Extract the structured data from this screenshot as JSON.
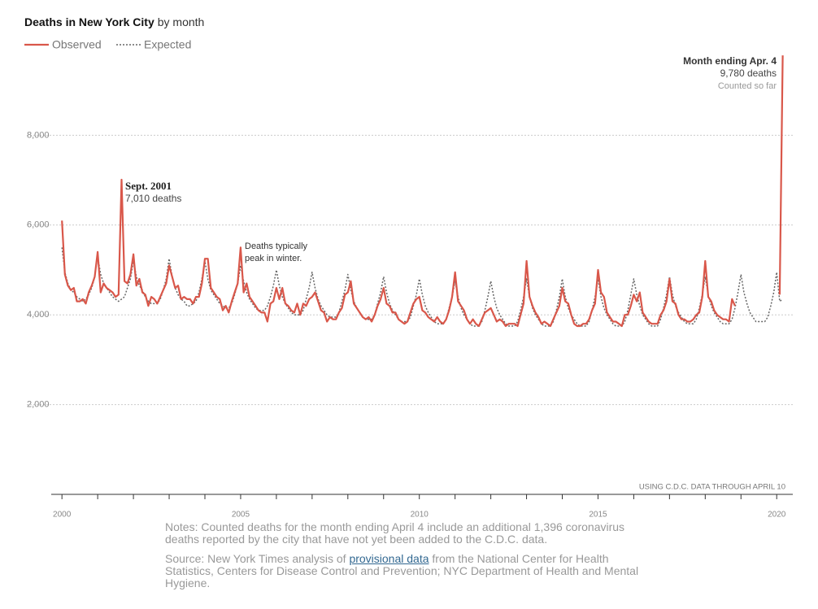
{
  "chart_data": {
    "type": "line",
    "title": "Deaths in New York City",
    "subtitle": "by month",
    "annotations": {
      "sept_title": "Sept. 2001",
      "sept_value": "7,010 deaths",
      "winter_1": "Deaths typically",
      "winter_2": "peak in winter.",
      "apr_title": "Month ending Apr. 4",
      "apr_value": "9,780 deaths",
      "apr_note": "Counted so far",
      "data_note": "USING C.D.C. DATA THROUGH APRIL 10"
    },
    "notes": "Notes: Counted deaths for the month ending April 4 include an additional 1,396 coronavirus deaths reported by the city that have not yet been added to the C.D.C. data.",
    "source": {
      "before": "Source: New York Times analysis of ",
      "link": "provisional data",
      "after": " from the National Center for Health Statistics, Centers for Disease Control and Prevention; NYC Department of Health and Mental Hygiene."
    },
    "xlim": [
      1999.7,
      2020.45
    ],
    "ylim": [
      0,
      10000
    ],
    "xticks": [
      2000,
      2005,
      2010,
      2015,
      2020
    ],
    "xminor_ticks": [
      2000,
      2001,
      2002,
      2003,
      2004,
      2005,
      2006,
      2007,
      2008,
      2009,
      2010,
      2011,
      2012,
      2013,
      2014,
      2015,
      2016,
      2017,
      2018,
      2019,
      2020
    ],
    "yticks": [
      {
        "value": 2000,
        "label": "2,000"
      },
      {
        "value": 4000,
        "label": "4,000"
      },
      {
        "value": 6000,
        "label": "6,000"
      },
      {
        "value": 8000,
        "label": "8,000"
      }
    ],
    "grid": true,
    "x": [
      2000,
      2000.083,
      2000.167,
      2000.25,
      2000.333,
      2000.417,
      2000.5,
      2000.583,
      2000.667,
      2000.75,
      2000.833,
      2000.917,
      2001,
      2001.083,
      2001.167,
      2001.25,
      2001.333,
      2001.417,
      2001.5,
      2001.583,
      2001.667,
      2001.75,
      2001.833,
      2001.917,
      2002,
      2002.083,
      2002.167,
      2002.25,
      2002.333,
      2002.417,
      2002.5,
      2002.583,
      2002.667,
      2002.75,
      2002.833,
      2002.917,
      2003,
      2003.083,
      2003.167,
      2003.25,
      2003.333,
      2003.417,
      2003.5,
      2003.583,
      2003.667,
      2003.75,
      2003.833,
      2003.917,
      2004,
      2004.083,
      2004.167,
      2004.25,
      2004.333,
      2004.417,
      2004.5,
      2004.583,
      2004.667,
      2004.75,
      2004.833,
      2004.917,
      2005,
      2005.083,
      2005.167,
      2005.25,
      2005.333,
      2005.417,
      2005.5,
      2005.583,
      2005.667,
      2005.75,
      2005.833,
      2005.917,
      2006,
      2006.083,
      2006.167,
      2006.25,
      2006.333,
      2006.417,
      2006.5,
      2006.583,
      2006.667,
      2006.75,
      2006.833,
      2006.917,
      2007,
      2007.083,
      2007.167,
      2007.25,
      2007.333,
      2007.417,
      2007.5,
      2007.583,
      2007.667,
      2007.75,
      2007.833,
      2007.917,
      2008,
      2008.083,
      2008.167,
      2008.25,
      2008.333,
      2008.417,
      2008.5,
      2008.583,
      2008.667,
      2008.75,
      2008.833,
      2008.917,
      2009,
      2009.083,
      2009.167,
      2009.25,
      2009.333,
      2009.417,
      2009.5,
      2009.583,
      2009.667,
      2009.75,
      2009.833,
      2009.917,
      2010,
      2010.083,
      2010.167,
      2010.25,
      2010.333,
      2010.417,
      2010.5,
      2010.583,
      2010.667,
      2010.75,
      2010.833,
      2010.917,
      2011,
      2011.083,
      2011.167,
      2011.25,
      2011.333,
      2011.417,
      2011.5,
      2011.583,
      2011.667,
      2011.75,
      2011.833,
      2011.917,
      2012,
      2012.083,
      2012.167,
      2012.25,
      2012.333,
      2012.417,
      2012.5,
      2012.583,
      2012.667,
      2012.75,
      2012.833,
      2012.917,
      2013,
      2013.083,
      2013.167,
      2013.25,
      2013.333,
      2013.417,
      2013.5,
      2013.583,
      2013.667,
      2013.75,
      2013.833,
      2013.917,
      2014,
      2014.083,
      2014.167,
      2014.25,
      2014.333,
      2014.417,
      2014.5,
      2014.583,
      2014.667,
      2014.75,
      2014.833,
      2014.917,
      2015,
      2015.083,
      2015.167,
      2015.25,
      2015.333,
      2015.417,
      2015.5,
      2015.583,
      2015.667,
      2015.75,
      2015.833,
      2015.917,
      2016,
      2016.083,
      2016.167,
      2016.25,
      2016.333,
      2016.417,
      2016.5,
      2016.583,
      2016.667,
      2016.75,
      2016.833,
      2016.917,
      2017,
      2017.083,
      2017.167,
      2017.25,
      2017.333,
      2017.417,
      2017.5,
      2017.583,
      2017.667,
      2017.75,
      2017.833,
      2017.917,
      2018,
      2018.083,
      2018.167,
      2018.25,
      2018.333,
      2018.417,
      2018.5,
      2018.583,
      2018.667,
      2018.75,
      2018.833,
      2018.917,
      2019,
      2019.083,
      2019.167,
      2019.25,
      2019.333,
      2019.417,
      2019.5,
      2019.583,
      2019.667,
      2019.75,
      2019.833,
      2019.917,
      2020,
      2020.083,
      2020.167
    ],
    "series": [
      {
        "name": "Observed",
        "color": "#d9574a",
        "dash": false,
        "values": [
          6100,
          4900,
          4650,
          4550,
          4600,
          4300,
          4300,
          4350,
          4250,
          4500,
          4650,
          4850,
          5400,
          4500,
          4700,
          4600,
          4550,
          4500,
          4400,
          4450,
          7010,
          4750,
          4700,
          4900,
          5350,
          4650,
          4800,
          4500,
          4450,
          4200,
          4400,
          4350,
          4250,
          4400,
          4550,
          4700,
          5100,
          4850,
          4600,
          4650,
          4350,
          4400,
          4350,
          4350,
          4250,
          4400,
          4400,
          4700,
          5250,
          5250,
          4600,
          4500,
          4400,
          4350,
          4100,
          4200,
          4050,
          4300,
          4500,
          4700,
          5500,
          4500,
          4700,
          4400,
          4300,
          4200,
          4100,
          4050,
          4050,
          3850,
          4250,
          4300,
          4600,
          4350,
          4600,
          4250,
          4200,
          4100,
          4050,
          4250,
          4000,
          4250,
          4200,
          4350,
          4400,
          4500,
          4300,
          4100,
          4050,
          3850,
          3950,
          3900,
          3900,
          4050,
          4150,
          4450,
          4500,
          4750,
          4250,
          4150,
          4050,
          3950,
          3900,
          3950,
          3850,
          4000,
          4200,
          4350,
          4600,
          4250,
          4200,
          4050,
          4050,
          3900,
          3850,
          3800,
          3850,
          4050,
          4250,
          4350,
          4400,
          4100,
          4050,
          3950,
          3900,
          3850,
          3950,
          3850,
          3800,
          3900,
          4100,
          4400,
          4950,
          4300,
          4200,
          4100,
          3900,
          3800,
          3900,
          3800,
          3750,
          3900,
          4050,
          4100,
          4150,
          4000,
          3850,
          3900,
          3850,
          3750,
          3800,
          3800,
          3800,
          3750,
          4000,
          4250,
          5200,
          4400,
          4200,
          4050,
          3950,
          3800,
          3850,
          3800,
          3750,
          3900,
          4050,
          4200,
          4600,
          4300,
          4250,
          4000,
          3800,
          3750,
          3750,
          3800,
          3800,
          3900,
          4100,
          4250,
          5000,
          4500,
          4400,
          4050,
          3950,
          3850,
          3850,
          3800,
          3750,
          4000,
          4000,
          4200,
          4450,
          4300,
          4500,
          4050,
          3950,
          3850,
          3800,
          3800,
          3800,
          4000,
          4100,
          4300,
          4800,
          4300,
          4250,
          4000,
          3900,
          3900,
          3850,
          3850,
          3900,
          4000,
          4050,
          4400,
          5200,
          4400,
          4300,
          4100,
          4000,
          3950,
          3900,
          3900,
          3850,
          4350,
          4200,
          null,
          null,
          null,
          null,
          null,
          null,
          null,
          null,
          null,
          null,
          null,
          null,
          null,
          null,
          4450,
          9780
        ]
      },
      {
        "name": "Expected",
        "color": "#666666",
        "dash": true,
        "values": [
          5500,
          4950,
          4700,
          4550,
          4500,
          4400,
          4350,
          4300,
          4350,
          4450,
          4600,
          4850,
          5300,
          4900,
          4700,
          4600,
          4500,
          4400,
          4350,
          4300,
          4350,
          4400,
          4600,
          4800,
          5200,
          4850,
          4650,
          4550,
          4400,
          4300,
          4250,
          4250,
          4250,
          4350,
          4550,
          4800,
          5250,
          4850,
          4600,
          4450,
          4350,
          4300,
          4200,
          4200,
          4250,
          4300,
          4500,
          4800,
          5200,
          4800,
          4550,
          4450,
          4350,
          4250,
          4200,
          4150,
          4150,
          4250,
          4450,
          4700,
          5100,
          4750,
          4500,
          4350,
          4250,
          4150,
          4100,
          4100,
          4100,
          4200,
          4400,
          4650,
          5000,
          4650,
          4400,
          4250,
          4150,
          4050,
          4000,
          4000,
          4000,
          4100,
          4350,
          4600,
          4950,
          4600,
          4350,
          4200,
          4100,
          4000,
          3950,
          3950,
          3950,
          4050,
          4300,
          4550,
          4900,
          4550,
          4300,
          4150,
          4050,
          3950,
          3900,
          3900,
          3900,
          4000,
          4250,
          4500,
          4850,
          4500,
          4250,
          4100,
          4000,
          3900,
          3850,
          3850,
          3850,
          3950,
          4200,
          4450,
          4800,
          4450,
          4200,
          4050,
          3950,
          3850,
          3800,
          3800,
          3800,
          3900,
          4150,
          4400,
          4750,
          4400,
          4150,
          4000,
          3900,
          3800,
          3750,
          3750,
          3750,
          3850,
          4100,
          4400,
          4750,
          4400,
          4150,
          4000,
          3900,
          3800,
          3750,
          3750,
          3750,
          3850,
          4100,
          4400,
          4800,
          4400,
          4150,
          4000,
          3900,
          3800,
          3750,
          3750,
          3750,
          3850,
          4100,
          4400,
          4800,
          4400,
          4150,
          4000,
          3900,
          3800,
          3750,
          3750,
          3750,
          3850,
          4100,
          4400,
          4800,
          4400,
          4150,
          4000,
          3900,
          3800,
          3750,
          3750,
          3750,
          3850,
          4100,
          4450,
          4800,
          4450,
          4200,
          4000,
          3900,
          3800,
          3750,
          3750,
          3750,
          3900,
          4150,
          4450,
          4850,
          4450,
          4200,
          4050,
          3950,
          3850,
          3800,
          3800,
          3800,
          3900,
          4150,
          4450,
          4850,
          4450,
          4200,
          4050,
          3950,
          3850,
          3800,
          3800,
          3800,
          3900,
          4150,
          4500,
          4900,
          4500,
          4250,
          4050,
          3950,
          3850,
          3850,
          3850,
          3850,
          3950,
          4200,
          4500,
          4950,
          4300,
          4350
        ]
      }
    ]
  }
}
